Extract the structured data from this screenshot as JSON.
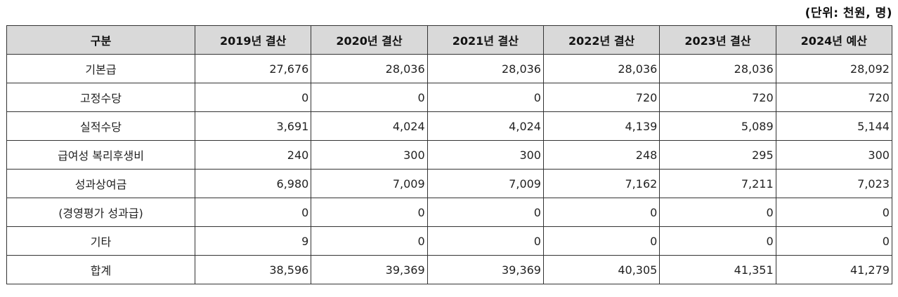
{
  "unit_note": "(단위: 천원, 명)",
  "table": {
    "headers": [
      "구분",
      "2019년 결산",
      "2020년 결산",
      "2021년 결산",
      "2022년 결산",
      "2023년 결산",
      "2024년 예산"
    ],
    "rows": [
      {
        "label": "기본급",
        "values": [
          "27,676",
          "28,036",
          "28,036",
          "28,036",
          "28,036",
          "28,092"
        ]
      },
      {
        "label": "고정수당",
        "values": [
          "0",
          "0",
          "0",
          "720",
          "720",
          "720"
        ]
      },
      {
        "label": "실적수당",
        "values": [
          "3,691",
          "4,024",
          "4,024",
          "4,139",
          "5,089",
          "5,144"
        ]
      },
      {
        "label": "급여성 복리후생비",
        "values": [
          "240",
          "300",
          "300",
          "248",
          "295",
          "300"
        ]
      },
      {
        "label": "성과상여금",
        "values": [
          "6,980",
          "7,009",
          "7,009",
          "7,162",
          "7,211",
          "7,023"
        ]
      },
      {
        "label": "(경영평가 성과급)",
        "values": [
          "0",
          "0",
          "0",
          "0",
          "0",
          "0"
        ]
      },
      {
        "label": "기타",
        "values": [
          "9",
          "0",
          "0",
          "0",
          "0",
          "0"
        ]
      },
      {
        "label": "합계",
        "values": [
          "38,596",
          "39,369",
          "39,369",
          "40,305",
          "41,351",
          "41,279"
        ]
      }
    ]
  }
}
